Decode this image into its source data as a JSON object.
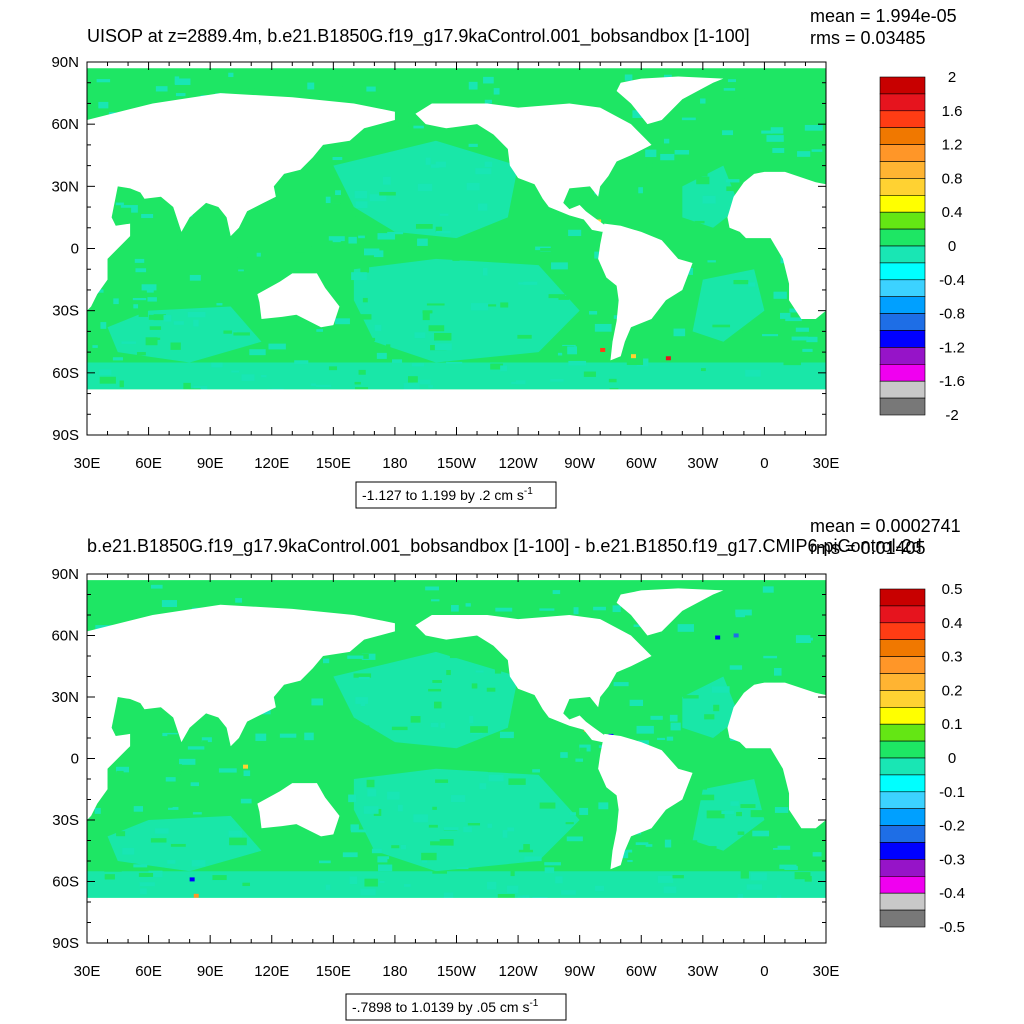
{
  "chart_data": [
    {
      "type": "heatmap",
      "title": "UISOP at z=2889.4m, b.e21.B1850G.f19_g17.9kaControl.001_bobsandbox [1-100]",
      "stats": {
        "mean": "mean = 1.994e-05",
        "rms": "rms = 0.03485"
      },
      "xticks": [
        "30E",
        "60E",
        "90E",
        "120E",
        "150E",
        "180",
        "150W",
        "120W",
        "90W",
        "60W",
        "30W",
        "0",
        "30E"
      ],
      "yticks": [
        "90N",
        "60N",
        "30N",
        "0",
        "30S",
        "60S",
        "90S"
      ],
      "colorbar": {
        "labels": [
          "2",
          "1.6",
          "1.2",
          "0.8",
          "0.4",
          "0",
          "-0.4",
          "-0.8",
          "-1.2",
          "-1.6",
          "-2"
        ],
        "colors": [
          "#c80000",
          "#e6141e",
          "#ff3c14",
          "#f07800",
          "#ff9628",
          "#ffb432",
          "#ffd232",
          "#ffff00",
          "#64e614",
          "#1ee664",
          "#19e6b4",
          "#00ffff",
          "#3cd2ff",
          "#00a0ff",
          "#1e6ee6",
          "#0000ff",
          "#9614c8",
          "#f000f0",
          "#c8c8c8",
          "#787878"
        ]
      },
      "range_label": "-1.127 to 1.199 by .2 cm s",
      "range_unit_sup": "-1",
      "ocean_colors": {
        "primary": "#1ee664",
        "secondary": "#19e6b4"
      }
    },
    {
      "type": "heatmap",
      "title": "b.e21.B1850G.f19_g17.9kaControl.001_bobsandbox [1-100] - b.e21.B1850.f19_g17.CMIP6-piControl-2d",
      "stats": {
        "mean": "mean = 0.0002741",
        "rms": "rms = 0.01405"
      },
      "xticks": [
        "30E",
        "60E",
        "90E",
        "120E",
        "150E",
        "180",
        "150W",
        "120W",
        "90W",
        "60W",
        "30W",
        "0",
        "30E"
      ],
      "yticks": [
        "90N",
        "60N",
        "30N",
        "0",
        "30S",
        "60S",
        "90S"
      ],
      "colorbar": {
        "labels": [
          "0.5",
          "0.4",
          "0.3",
          "0.2",
          "0.1",
          "0",
          "-0.1",
          "-0.2",
          "-0.3",
          "-0.4",
          "-0.5"
        ],
        "colors": [
          "#c80000",
          "#e6141e",
          "#ff3c14",
          "#f07800",
          "#ff9628",
          "#ffb432",
          "#ffd232",
          "#ffff00",
          "#64e614",
          "#1ee664",
          "#19e6b4",
          "#00ffff",
          "#3cd2ff",
          "#00a0ff",
          "#1e6ee6",
          "#0000ff",
          "#9614c8",
          "#f000f0",
          "#c8c8c8",
          "#787878"
        ]
      },
      "range_label": "-.7898 to 1.0139 by .05 cm s",
      "range_unit_sup": "-1",
      "ocean_colors": {
        "primary": "#1ee664",
        "secondary": "#19e6b4"
      }
    }
  ]
}
